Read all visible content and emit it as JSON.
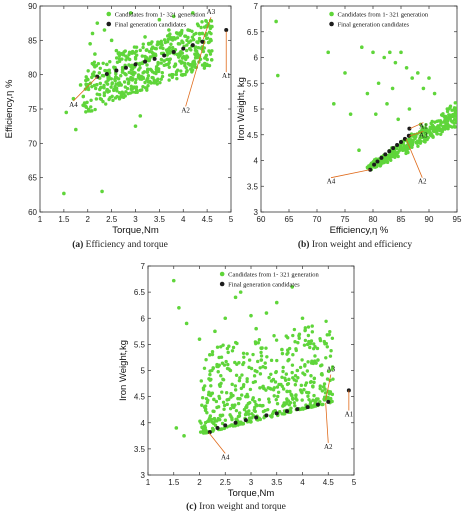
{
  "figure": {
    "panels": [
      {
        "id": "a",
        "caption_tag": "(a)",
        "caption_text": " Efficiency and torque"
      },
      {
        "id": "b",
        "caption_tag": "(b)",
        "caption_text": " Iron weight and efficiency"
      },
      {
        "id": "c",
        "caption_tag": "(c)",
        "caption_text": " Iron weight and torque"
      }
    ]
  },
  "colors": {
    "candidates": "#5fd53a",
    "final": "#1c1c1c",
    "annotation": "#e06a1a"
  },
  "chart_data": [
    {
      "type": "scatter",
      "title": "",
      "xlabel": "Torque,Nm",
      "ylabel": "Efficiency,η %",
      "xlim": [
        1,
        5
      ],
      "ylim": [
        60,
        90
      ],
      "xticks": [
        "1",
        "1.5",
        "2",
        "2.5",
        "3",
        "3.5",
        "4",
        "4.5",
        "5"
      ],
      "yticks": [
        "60",
        "65",
        "70",
        "75",
        "80",
        "85",
        "90"
      ],
      "legend_position": "top-right",
      "series": [
        {
          "name": "Candidates from 1- 321 generation",
          "points": [
            [
              1.5,
              62.7
            ],
            [
              1.55,
              74.5
            ],
            [
              1.7,
              76.5
            ],
            [
              1.75,
              72
            ],
            [
              1.85,
              78.5
            ],
            [
              2.0,
              78.5
            ],
            [
              2.05,
              84.5
            ],
            [
              2.1,
              86
            ],
            [
              2.2,
              87.5
            ],
            [
              2.3,
              63
            ],
            [
              2.5,
              85
            ],
            [
              2.9,
              89
            ],
            [
              3.0,
              72.5
            ],
            [
              3.1,
              74
            ],
            [
              3.5,
              88
            ],
            [
              3.8,
              88.5
            ],
            [
              4.0,
              90.5
            ],
            [
              4.2,
              89
            ],
            [
              4.4,
              86
            ],
            [
              4.6,
              87
            ],
            [
              2.25,
              79.5
            ],
            [
              2.4,
              81.5
            ],
            [
              2.6,
              83.5
            ],
            [
              2.8,
              80
            ],
            [
              3.2,
              85.5
            ],
            [
              3.6,
              82
            ],
            [
              3.9,
              84.5
            ],
            [
              4.1,
              86.5
            ],
            [
              2.7,
              78.5
            ],
            [
              3.3,
              79
            ],
            [
              2.15,
              83
            ],
            [
              3.7,
              86.5
            ],
            [
              4.3,
              83
            ],
            [
              2.35,
              86.5
            ]
          ]
        },
        {
          "name": "Final generation candidates",
          "points": [
            [
              2.2,
              79.7
            ],
            [
              2.4,
              80.1
            ],
            [
              2.6,
              80.6
            ],
            [
              2.8,
              81
            ],
            [
              3.0,
              81.5
            ],
            [
              3.2,
              81.9
            ],
            [
              3.4,
              82.3
            ],
            [
              3.6,
              82.8
            ],
            [
              3.8,
              83.3
            ],
            [
              4.0,
              83.8
            ],
            [
              4.2,
              84.3
            ],
            [
              4.4,
              84.8
            ],
            [
              4.9,
              86.5
            ]
          ]
        }
      ],
      "annotations": [
        "A1",
        "A2",
        "A3",
        "A4"
      ]
    },
    {
      "type": "scatter",
      "title": "",
      "xlabel": "Efficiency,η %",
      "ylabel": "Iron Weight, kg",
      "xlim": [
        60,
        95
      ],
      "ylim": [
        3,
        7
      ],
      "xticks": [
        "60",
        "65",
        "70",
        "75",
        "80",
        "85",
        "90",
        "95"
      ],
      "yticks": [
        "3",
        "3.5",
        "4",
        "4.5",
        "5",
        "5.5",
        "6",
        "6.5",
        "7"
      ],
      "legend_position": "top-right",
      "series": [
        {
          "name": "Candidates from 1- 321 generation",
          "points": [
            [
              62.7,
              6.7
            ],
            [
              63,
              5.65
            ],
            [
              72,
              6.1
            ],
            [
              73,
              5.1
            ],
            [
              75,
              5.7
            ],
            [
              76,
              4.9
            ],
            [
              77.5,
              4.2
            ],
            [
              78,
              6.2
            ],
            [
              80,
              6.1
            ],
            [
              82,
              6.0
            ],
            [
              83,
              6.1
            ],
            [
              84,
              5.9
            ],
            [
              85,
              6.1
            ],
            [
              86,
              5.8
            ],
            [
              87,
              5.6
            ],
            [
              88,
              5.7
            ],
            [
              89,
              5.4
            ],
            [
              90,
              5.6
            ],
            [
              91,
              5.3
            ],
            [
              88.5,
              4.7
            ],
            [
              90.5,
              4.5
            ],
            [
              79,
              5.3
            ],
            [
              81,
              5.5
            ],
            [
              83.5,
              5.4
            ],
            [
              86.5,
              5.0
            ],
            [
              80.5,
              4.9
            ],
            [
              82.5,
              5.1
            ],
            [
              84.5,
              4.8
            ]
          ]
        },
        {
          "name": "Final generation candidates",
          "points": [
            [
              79.5,
              3.82
            ],
            [
              80.2,
              3.92
            ],
            [
              80.8,
              3.98
            ],
            [
              81.5,
              4.05
            ],
            [
              82.2,
              4.12
            ],
            [
              82.9,
              4.18
            ],
            [
              83.6,
              4.24
            ],
            [
              84.3,
              4.3
            ],
            [
              85.0,
              4.36
            ],
            [
              85.7,
              4.42
            ],
            [
              86.4,
              4.48
            ],
            [
              86.5,
              4.62
            ]
          ]
        }
      ],
      "annotations": [
        "A1",
        "A2",
        "A3",
        "A4"
      ]
    },
    {
      "type": "scatter",
      "title": "",
      "xlabel": "Torque,Nm",
      "ylabel": "Iron Weight,kg",
      "xlim": [
        1,
        5
      ],
      "ylim": [
        3,
        7
      ],
      "xticks": [
        "1",
        "1.5",
        "2",
        "2.5",
        "3",
        "3.5",
        "4",
        "4.5",
        "5"
      ],
      "yticks": [
        "3",
        "3.5",
        "4",
        "4.5",
        "5",
        "5.5",
        "6",
        "6.5",
        "7"
      ],
      "legend_position": "top-right",
      "series": [
        {
          "name": "Candidates from 1- 321 generation",
          "points": [
            [
              1.5,
              6.72
            ],
            [
              1.55,
              3.9
            ],
            [
              1.6,
              6.2
            ],
            [
              1.7,
              3.75
            ],
            [
              1.75,
              5.9
            ],
            [
              2.0,
              5.6
            ],
            [
              2.2,
              5.3
            ],
            [
              2.3,
              5.75
            ],
            [
              2.5,
              6.0
            ],
            [
              2.7,
              6.4
            ],
            [
              2.8,
              6.5
            ],
            [
              3.0,
              6.05
            ],
            [
              3.1,
              5.8
            ],
            [
              3.3,
              6.1
            ],
            [
              3.5,
              6.3
            ],
            [
              3.8,
              6.6
            ],
            [
              4.0,
              6.0
            ],
            [
              4.1,
              5.5
            ],
            [
              4.3,
              5.2
            ],
            [
              4.5,
              4.6
            ],
            [
              2.4,
              4.7
            ],
            [
              2.6,
              5.0
            ],
            [
              3.2,
              5.2
            ],
            [
              3.4,
              4.8
            ],
            [
              3.6,
              5.4
            ],
            [
              2.9,
              4.5
            ],
            [
              3.7,
              4.6
            ],
            [
              3.9,
              5.0
            ],
            [
              4.2,
              4.7
            ],
            [
              2.1,
              4.3
            ]
          ]
        },
        {
          "name": "Final generation candidates",
          "points": [
            [
              2.2,
              3.82
            ],
            [
              2.35,
              3.9
            ],
            [
              2.5,
              3.95
            ],
            [
              2.7,
              4.0
            ],
            [
              2.9,
              4.05
            ],
            [
              3.1,
              4.1
            ],
            [
              3.3,
              4.14
            ],
            [
              3.5,
              4.18
            ],
            [
              3.7,
              4.22
            ],
            [
              3.9,
              4.26
            ],
            [
              4.1,
              4.3
            ],
            [
              4.3,
              4.35
            ],
            [
              4.5,
              4.4
            ],
            [
              4.9,
              4.62
            ]
          ]
        }
      ],
      "annotations": [
        "A1",
        "A2",
        "A3",
        "A4"
      ]
    }
  ]
}
